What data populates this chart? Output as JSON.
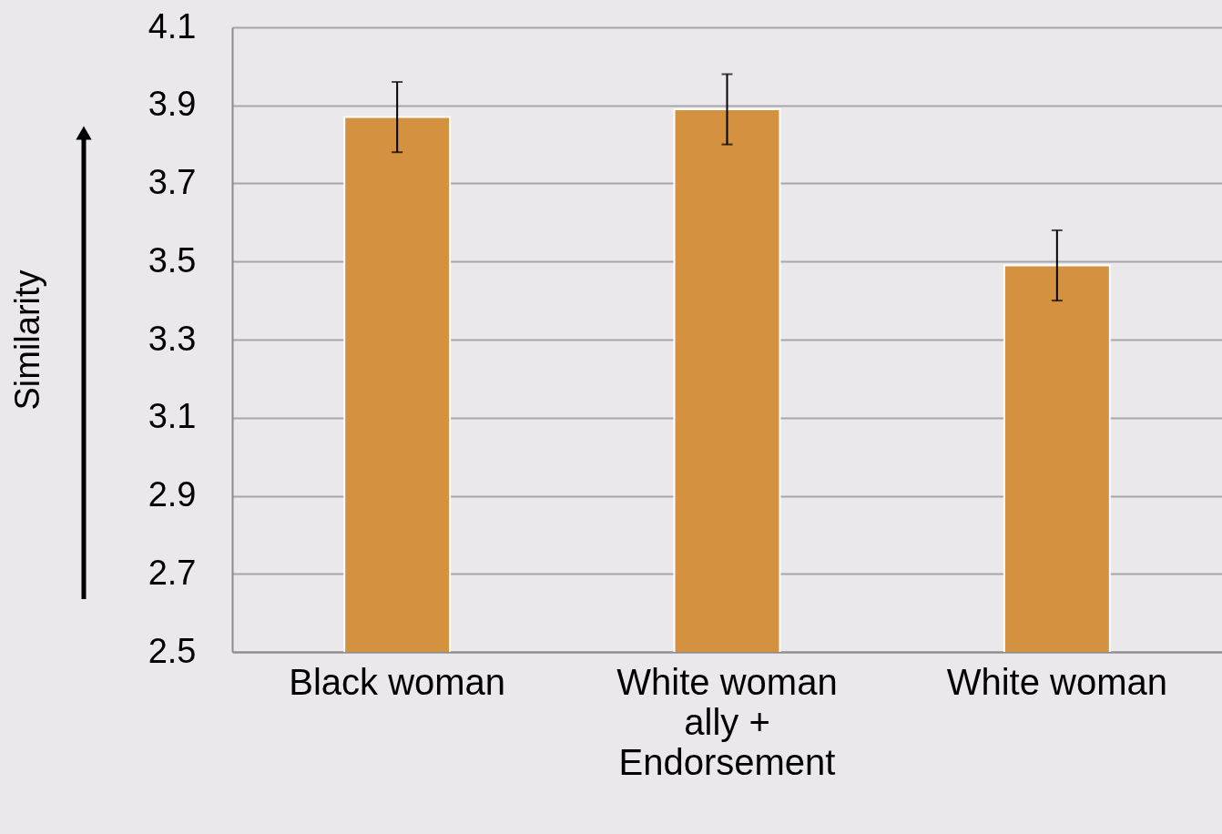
{
  "chart_data": {
    "type": "bar",
    "ylabel": "Similarity",
    "categories": [
      "Black woman",
      "White woman\nally +\nEndorsement",
      "White woman"
    ],
    "values": [
      3.87,
      3.89,
      3.49
    ],
    "errors": [
      0.09,
      0.09,
      0.09
    ],
    "color": "#d4913f",
    "ylim": [
      2.5,
      4.1
    ],
    "yticks": [
      2.5,
      2.7,
      2.9,
      3.1,
      3.3,
      3.5,
      3.7,
      3.9,
      4.1
    ],
    "grid": "y"
  }
}
